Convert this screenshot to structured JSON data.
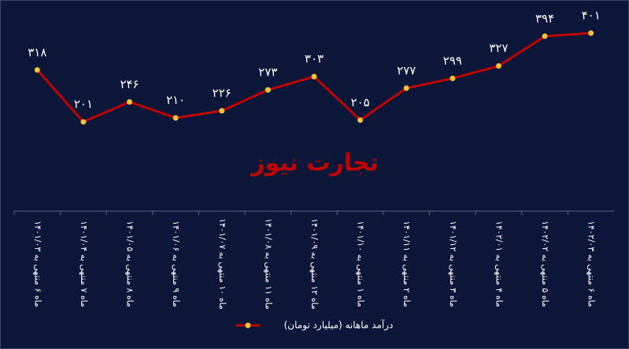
{
  "chart_data": {
    "type": "line",
    "watermark": "تجارت نیوز",
    "categories": [
      "ماه ۶ منتهی به ۱۴۰۱/۰۳",
      "ماه ۷ منتهی به ۱۴۰۱/۰۴",
      "ماه ۸ منتهی به ۱۴۰۱/۰۵",
      "ماه ۹ منتهی به ۱۴۰۱/۰۶",
      "ماه ۱۰ منتهی به ۱۴۰۱/۰۷",
      "ماه ۱۱ منتهی به ۱۴۰۱/۰۸",
      "ماه ۱۲ منتهی به ۱۴۰۱/۰۹",
      "ماه ۱ منتهی به ۱۴۰۱/۱۰",
      "ماه ۲ منتهی به ۱۴۰۱/۱۱",
      "ماه ۳ منتهی به ۱۴۰۱/۱۲",
      "ماه ۴ منتهی به ۱۴۰۲/۰۱",
      "ماه ۵ منتهی به ۱۴۰۲/۰۲",
      "ماه ۶ منتهی به ۱۴۰۲/۰۳"
    ],
    "series": [
      {
        "name": "درآمد ماهانه (میلیارد تومان)",
        "color": "#c00000",
        "marker_color": "#f2c43a",
        "values": [
          318,
          201,
          246,
          210,
          226,
          273,
          303,
          205,
          277,
          299,
          327,
          394,
          401
        ],
        "value_labels": [
          "۳۱۸",
          "۲۰۱",
          "۲۴۶",
          "۲۱۰",
          "۲۲۶",
          "۲۷۳",
          "۳۰۳",
          "۲۰۵",
          "۲۷۷",
          "۲۹۹",
          "۳۲۷",
          "۳۹۴",
          "۴۰۱"
        ]
      }
    ],
    "ylim": [
      0,
      440
    ],
    "grid": false,
    "legend": "bottom"
  }
}
